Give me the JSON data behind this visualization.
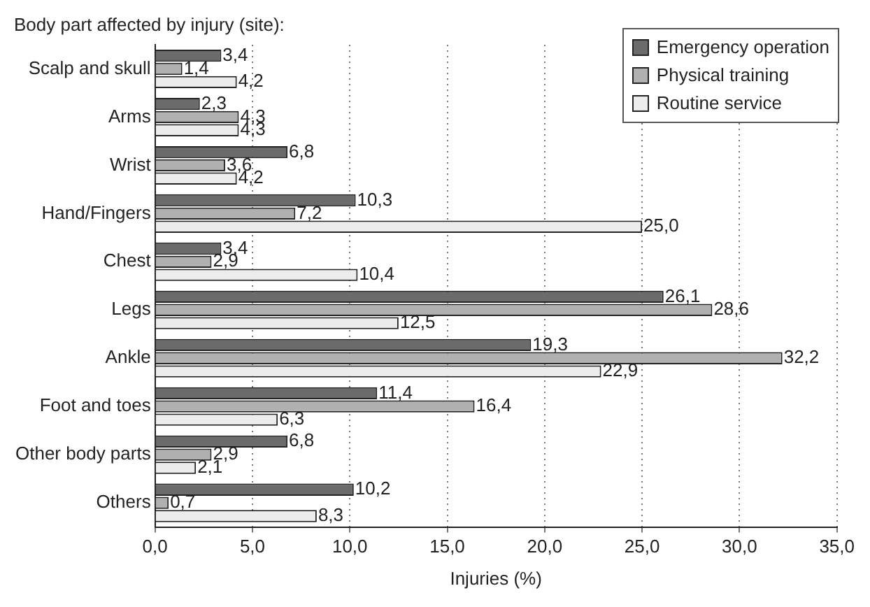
{
  "chart_data": {
    "type": "bar",
    "orientation": "horizontal",
    "ylabel": "Body part affected by injury (site):",
    "xlabel": "Injuries (%)",
    "categories": [
      "Scalp and skull",
      "Arms",
      "Wrist",
      "Hand/Fingers",
      "Chest",
      "Legs",
      "Ankle",
      "Foot and toes",
      "Other body parts",
      "Others"
    ],
    "series": [
      {
        "name": "Emergency operation",
        "color": "#6b6b6b",
        "values": [
          3.4,
          2.3,
          6.8,
          10.3,
          3.4,
          26.1,
          19.3,
          11.4,
          6.8,
          10.2
        ],
        "value_labels": [
          "3,4",
          "2,3",
          "6,8",
          "10,3",
          "3,4",
          "26,1",
          "19,3",
          "11,4",
          "6,8",
          "10,2"
        ]
      },
      {
        "name": "Physical training",
        "color": "#b0b0b0",
        "values": [
          1.4,
          4.3,
          3.6,
          7.2,
          2.9,
          28.6,
          32.2,
          16.4,
          2.9,
          0.7
        ],
        "value_labels": [
          "1,4",
          "4,3",
          "3,6",
          "7,2",
          "2,9",
          "28,6",
          "32,2",
          "16,4",
          "2,9",
          "0,7"
        ]
      },
      {
        "name": "Routine service",
        "color": "#ececec",
        "values": [
          4.2,
          4.3,
          4.2,
          25.0,
          10.4,
          12.5,
          22.9,
          6.3,
          2.1,
          8.3
        ],
        "value_labels": [
          "4,2",
          "4,3",
          "4,2",
          "25,0",
          "10,4",
          "12,5",
          "22,9",
          "6,3",
          "2,1",
          "8,3"
        ]
      }
    ],
    "xlim": [
      0,
      35
    ],
    "xticks": [
      {
        "value": 0,
        "label": "0,0"
      },
      {
        "value": 5,
        "label": "5,0"
      },
      {
        "value": 10,
        "label": "10,0"
      },
      {
        "value": 15,
        "label": "15,0"
      },
      {
        "value": 20,
        "label": "20,0"
      },
      {
        "value": 25,
        "label": "25,0"
      },
      {
        "value": 30,
        "label": "30,0"
      },
      {
        "value": 35,
        "label": "35,0"
      }
    ],
    "grid": "x",
    "legend": "top right"
  }
}
